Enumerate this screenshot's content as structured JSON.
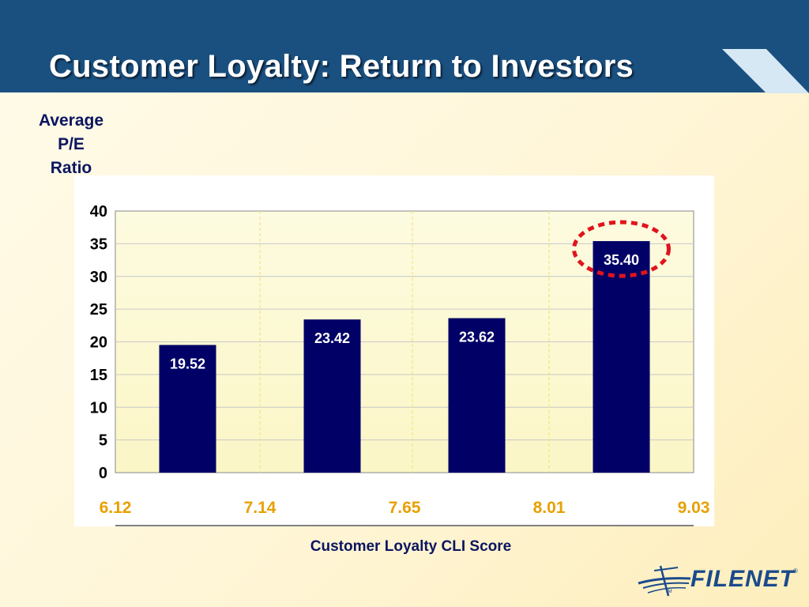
{
  "slide": {
    "title": "Customer Loyalty: Return to Investors"
  },
  "logo": {
    "text": "FILENET",
    "trademark": "®",
    "tm": "TM"
  },
  "colors": {
    "header": "#1a5080",
    "bar": "#000066",
    "x_tick": "#e8a000",
    "axis_text": "#0b1560",
    "highlight": "#e0141c"
  },
  "chart_data": {
    "type": "bar",
    "title": "",
    "ylabel_lines": [
      "Average",
      "P/E",
      "Ratio"
    ],
    "xlabel": "Customer Loyalty CLI Score",
    "x_ticks": [
      "6.12",
      "7.14",
      "7.65",
      "8.01",
      "9.03"
    ],
    "categories": [
      "6.12–7.14",
      "7.14–7.65",
      "7.65–8.01",
      "8.01–9.03"
    ],
    "values": [
      19.52,
      23.42,
      23.62,
      35.4
    ],
    "data_labels": [
      "19.52",
      "23.42",
      "23.62",
      "35.40"
    ],
    "y_ticks": [
      "0",
      "5",
      "10",
      "15",
      "20",
      "25",
      "30",
      "35",
      "40"
    ],
    "ylim": [
      0,
      40
    ],
    "grid": true,
    "highlighted_index": 3
  }
}
